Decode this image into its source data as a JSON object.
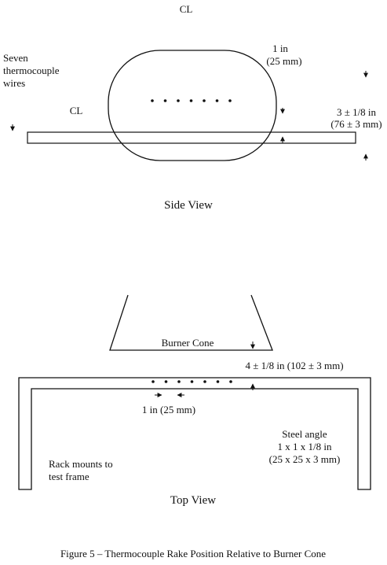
{
  "side_view": {
    "centerline_top": "CL",
    "centerline_mid": "CL",
    "wires_label_line1": "Seven",
    "wires_label_line2": "thermocouple",
    "wires_label_line3": "wires",
    "spacing_line1": "1 in",
    "spacing_line2": "(25 mm)",
    "height_line1": "3 ± 1/8 in",
    "height_line2": "(76 ± 3 mm)",
    "title": "Side View"
  },
  "top_view": {
    "burner_label": "Burner Cone",
    "distance_label": "4 ± 1/8 in (102 ± 3 mm)",
    "spacing_label": "1 in (25 mm)",
    "steel_line1": "Steel angle",
    "steel_line2": "1 x 1 x 1/8 in",
    "steel_line3": "(25 x 25 x 3 mm)",
    "rack_line1": "Rack mounts to",
    "rack_line2": "test frame",
    "title": "Top View"
  },
  "caption": "Figure 5 – Thermocouple Rake Position Relative to Burner Cone",
  "thermocouple_count": 7
}
